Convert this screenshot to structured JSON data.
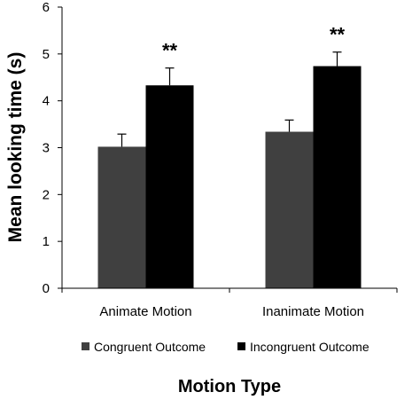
{
  "chart_data": {
    "type": "bar",
    "categories": [
      "Animate Motion",
      "Inanimate Motion"
    ],
    "series": [
      {
        "name": "Congruent Outcome",
        "color": "#404040",
        "values": [
          3.02,
          3.34
        ],
        "errors": [
          0.27,
          0.25
        ]
      },
      {
        "name": "Incongruent Outcome",
        "color": "#000000",
        "values": [
          4.33,
          4.74
        ],
        "errors": [
          0.37,
          0.3
        ]
      }
    ],
    "significance": [
      "**",
      "**"
    ],
    "xlabel": "Motion Type",
    "ylabel": "Mean looking time (s)",
    "ylim": [
      0,
      6
    ],
    "yticks": [
      "0",
      "1",
      "2",
      "3",
      "4",
      "5",
      "6"
    ],
    "grid": false,
    "legend_position": "bottom"
  }
}
